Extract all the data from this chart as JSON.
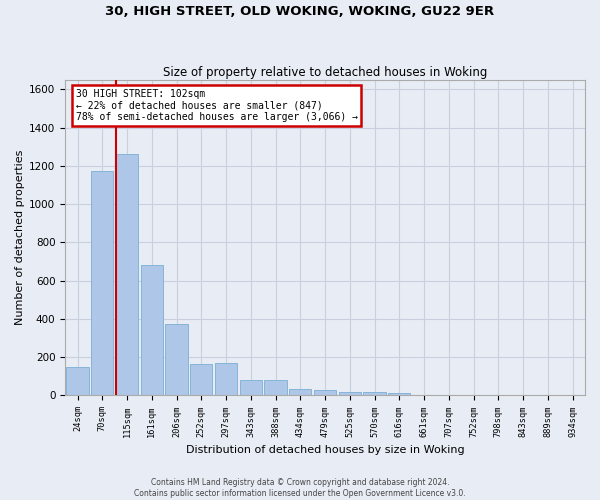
{
  "title1": "30, HIGH STREET, OLD WOKING, WOKING, GU22 9ER",
  "title2": "Size of property relative to detached houses in Woking",
  "xlabel": "Distribution of detached houses by size in Woking",
  "ylabel": "Number of detached properties",
  "bar_labels": [
    "24sqm",
    "70sqm",
    "115sqm",
    "161sqm",
    "206sqm",
    "252sqm",
    "297sqm",
    "343sqm",
    "388sqm",
    "434sqm",
    "479sqm",
    "525sqm",
    "570sqm",
    "616sqm",
    "661sqm",
    "707sqm",
    "752sqm",
    "798sqm",
    "843sqm",
    "889sqm",
    "934sqm"
  ],
  "bar_values": [
    150,
    1175,
    1260,
    680,
    375,
    165,
    170,
    80,
    80,
    35,
    30,
    20,
    20,
    12,
    0,
    0,
    0,
    0,
    0,
    0,
    0
  ],
  "bar_color": "#aec6e8",
  "bar_edge_color": "#7aafd4",
  "annotation_text1": "30 HIGH STREET: 102sqm",
  "annotation_text2": "← 22% of detached houses are smaller (847)",
  "annotation_text3": "78% of semi-detached houses are larger (3,066) →",
  "annotation_box_color": "#ffffff",
  "annotation_box_edge": "#cc0000",
  "vline_color": "#cc0000",
  "vline_x_index": 2,
  "ylim": [
    0,
    1650
  ],
  "yticks": [
    0,
    200,
    400,
    600,
    800,
    1000,
    1200,
    1400,
    1600
  ],
  "grid_color": "#c8d0e0",
  "bg_color": "#e8edf5",
  "footer1": "Contains HM Land Registry data © Crown copyright and database right 2024.",
  "footer2": "Contains public sector information licensed under the Open Government Licence v3.0."
}
